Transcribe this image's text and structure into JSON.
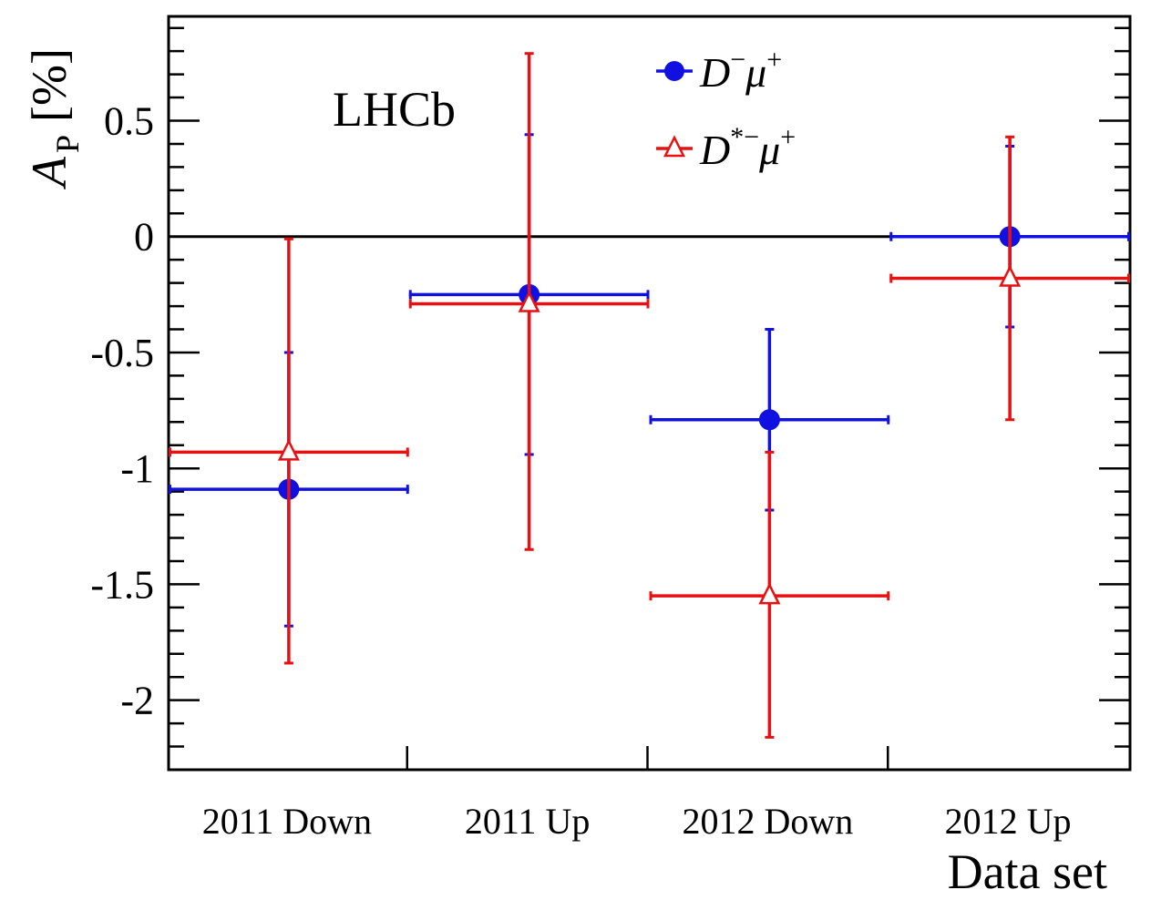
{
  "chart_data": {
    "type": "scatter",
    "categories": [
      "2011 Down",
      "2011 Up",
      "2012 Down",
      "2012 Up"
    ],
    "xlabel": "Data set",
    "ylabel": {
      "main": "A",
      "subscript": "P",
      "unit": "[%]"
    },
    "ylim": [
      -2.3,
      0.95
    ],
    "yticks": [
      0.5,
      0,
      -0.5,
      -1,
      -1.5,
      -2
    ],
    "ytick_labels": [
      "0.5",
      "0",
      "-0.5",
      "-1",
      "-1.5",
      "-2"
    ],
    "annotation": "LHCb",
    "zero_line": 0,
    "series": [
      {
        "name": "D⁻μ⁺",
        "name_base1": "D",
        "name_sup1": "−",
        "name_base2": "μ",
        "name_sup2": "+",
        "color": "#1010e0",
        "marker": "filled-circle",
        "points": [
          {
            "category": "2011 Down",
            "y": -1.09,
            "yerr_low": 0.59,
            "yerr_high": 0.59
          },
          {
            "category": "2011 Up",
            "y": -0.25,
            "yerr_low": 0.69,
            "yerr_high": 0.69
          },
          {
            "category": "2012 Down",
            "y": -0.79,
            "yerr_low": 0.39,
            "yerr_high": 0.39
          },
          {
            "category": "2012 Up",
            "y": 0.0,
            "yerr_low": 0.39,
            "yerr_high": 0.39
          }
        ]
      },
      {
        "name": "D*⁻μ⁺",
        "name_base1": "D",
        "name_sup1": "*−",
        "name_base2": "μ",
        "name_sup2": "+",
        "color": "#e81010",
        "marker": "open-triangle",
        "points": [
          {
            "category": "2011 Down",
            "y": -0.93,
            "yerr_low": 0.91,
            "yerr_high": 0.92
          },
          {
            "category": "2011 Up",
            "y": -0.29,
            "yerr_low": 1.06,
            "yerr_high": 1.08
          },
          {
            "category": "2012 Down",
            "y": -1.55,
            "yerr_low": 0.61,
            "yerr_high": 0.62
          },
          {
            "category": "2012 Up",
            "y": -0.18,
            "yerr_low": 0.61,
            "yerr_high": 0.61
          }
        ]
      }
    ],
    "legend": {
      "position": "top-center"
    },
    "grid": false
  }
}
